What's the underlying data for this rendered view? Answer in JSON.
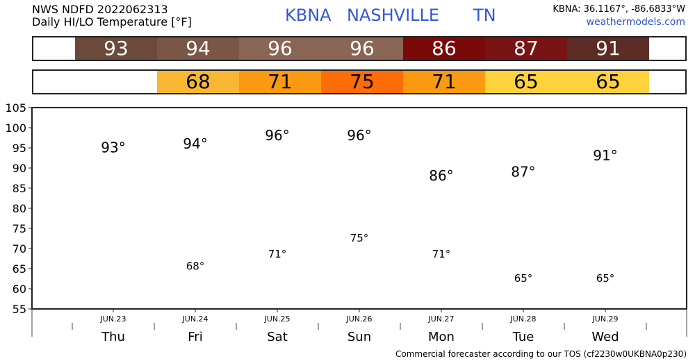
{
  "header": {
    "line1": "NWS NDFD 2022062313",
    "line2": "Daily HI/LO Temperature [°F]",
    "station_code": "KBNA",
    "station_city": "NASHVILLE",
    "station_state": "TN",
    "coords": "KBNA: 36.1167°, -86.6833°W",
    "website": "weathermodels.com"
  },
  "hi_strip": [
    {
      "label": "93",
      "bg": "#6b4a3c",
      "fg": "#ffffff"
    },
    {
      "label": "94",
      "bg": "#7a5646",
      "fg": "#ffffff"
    },
    {
      "label": "96",
      "bg": "#8a6656",
      "fg": "#ffffff"
    },
    {
      "label": "96",
      "bg": "#8a6656",
      "fg": "#ffffff"
    },
    {
      "label": "86",
      "bg": "#7a0a0a",
      "fg": "#ffffff"
    },
    {
      "label": "87",
      "bg": "#7a1414",
      "fg": "#ffffff"
    },
    {
      "label": "91",
      "bg": "#5e2c26",
      "fg": "#ffffff"
    }
  ],
  "lo_strip": [
    {
      "label": "",
      "bg": "#ffffff",
      "fg": "#000000"
    },
    {
      "label": "68",
      "bg": "#f7b733",
      "fg": "#000000"
    },
    {
      "label": "71",
      "bg": "#fb9a10",
      "fg": "#000000"
    },
    {
      "label": "75",
      "bg": "#fc6d0a",
      "fg": "#000000"
    },
    {
      "label": "71",
      "bg": "#fb9a10",
      "fg": "#000000"
    },
    {
      "label": "65",
      "bg": "#fdd23c",
      "fg": "#000000"
    },
    {
      "label": "65",
      "bg": "#fdd23c",
      "fg": "#000000"
    }
  ],
  "chart_data": {
    "type": "bar",
    "categories": [
      "Thu",
      "Fri",
      "Sat",
      "Sun",
      "Mon",
      "Tue",
      "Wed"
    ],
    "dates": [
      "JUN.23",
      "JUN.24",
      "JUN.25",
      "JUN.26",
      "JUN.27",
      "JUN.28",
      "JUN.29"
    ],
    "series": [
      {
        "values": [
          93,
          94,
          96,
          96,
          86,
          87,
          91
        ],
        "color": "#5b9bf2"
      },
      {
        "values": [
          null,
          68,
          71,
          75,
          71,
          65,
          65
        ],
        "color": "#33d13c"
      }
    ],
    "hi_labels": [
      "93°",
      "94°",
      "96°",
      "96°",
      "86°",
      "87°",
      "91°"
    ],
    "lo_labels": [
      "",
      "68°",
      "71°",
      "75°",
      "71°",
      "65°",
      "65°"
    ],
    "yticks": [
      "105",
      "100",
      "95",
      "90",
      "85",
      "80",
      "75",
      "70",
      "65",
      "60",
      "55"
    ],
    "ylim": [
      55,
      105
    ],
    "grid": true
  },
  "footer": "Commercial forecaster according to our TOS (cf2230w0UKBNA0p230)"
}
